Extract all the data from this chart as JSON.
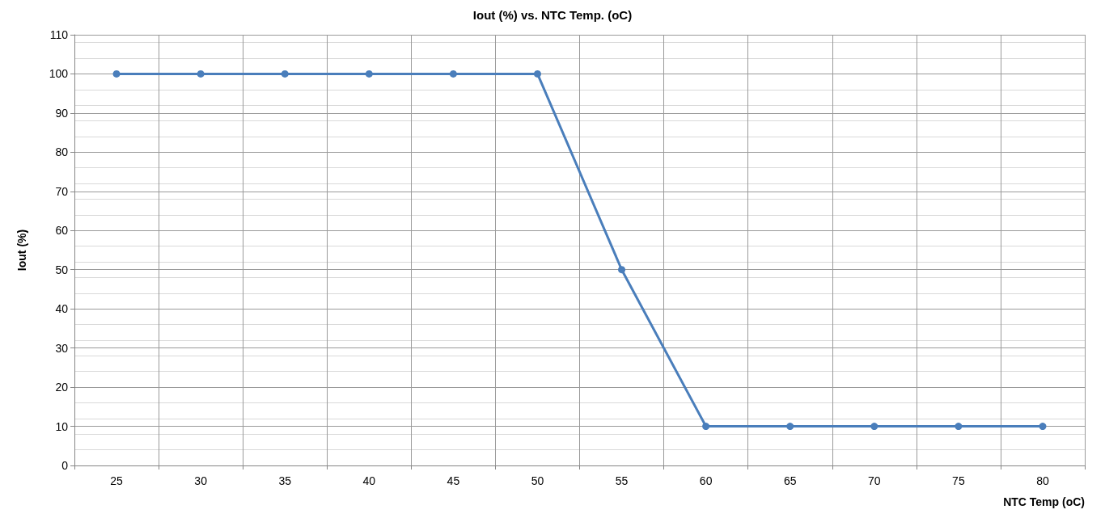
{
  "chart_data": {
    "type": "line",
    "title": "Iout (%) vs. NTC Temp. (oC)",
    "xlabel": "NTC Temp (oC)",
    "ylabel": "Iout (%)",
    "categories": [
      "25",
      "30",
      "35",
      "40",
      "45",
      "50",
      "55",
      "60",
      "65",
      "70",
      "75",
      "80"
    ],
    "series": [
      {
        "color": "#4a7ebb",
        "values": [
          100,
          100,
          100,
          100,
          100,
          100,
          50,
          10,
          10,
          10,
          10,
          10
        ]
      }
    ],
    "ylim": [
      0,
      110
    ],
    "yticks": [
      0,
      10,
      20,
      30,
      40,
      50,
      60,
      70,
      80,
      90,
      100,
      110
    ],
    "grid": true,
    "marker": "circle",
    "line_style": "solid"
  }
}
